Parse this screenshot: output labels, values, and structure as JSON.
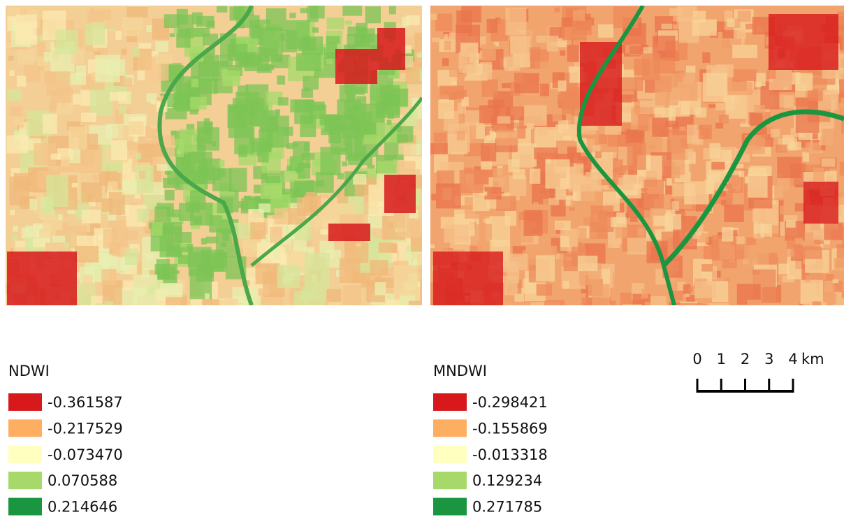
{
  "maps": [
    {
      "title": "NDWI",
      "classes": [
        {
          "label": "-0.361587",
          "color": "#d7191c"
        },
        {
          "label": "-0.217529",
          "color": "#fdae61"
        },
        {
          "label": "-0.073470",
          "color": "#ffffbf"
        },
        {
          "label": "0.070588",
          "color": "#a6d96a"
        },
        {
          "label": "0.214646",
          "color": "#1a9641"
        }
      ]
    },
    {
      "title": "MNDWI",
      "classes": [
        {
          "label": "-0.298421",
          "color": "#d7191c"
        },
        {
          "label": "-0.155869",
          "color": "#fdae61"
        },
        {
          "label": "-0.013318",
          "color": "#ffffbf"
        },
        {
          "label": "0.129234",
          "color": "#a6d96a"
        },
        {
          "label": "0.271785",
          "color": "#1a9641"
        }
      ]
    }
  ],
  "scale_bar": {
    "labels": [
      "0",
      "1",
      "2",
      "3",
      "4"
    ],
    "unit": "km"
  }
}
